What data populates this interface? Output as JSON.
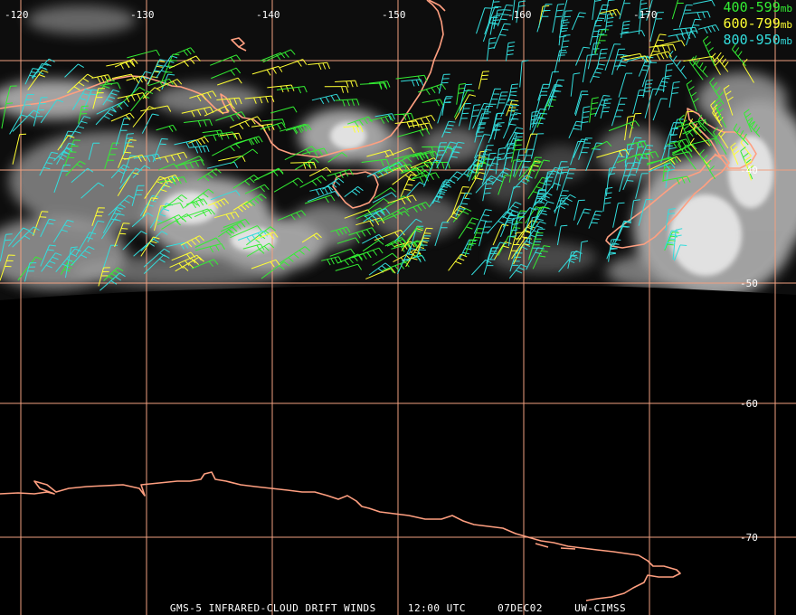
{
  "title": {
    "product": "GMS-5 INFRARED-CLOUD DRIFT WINDS",
    "time": "12:00 UTC",
    "date": "07DEC02",
    "credit": "UW-CIMSS"
  },
  "legend": [
    {
      "range": "400-599",
      "unit": "mb",
      "color": "#33ee33"
    },
    {
      "range": "600-799",
      "unit": "mb",
      "color": "#ffff33"
    },
    {
      "range": "800-950",
      "unit": "mb",
      "color": "#33dddd"
    }
  ],
  "longitude_labels": [
    "-120",
    "-130",
    "-140",
    "-150",
    "-160",
    "-170"
  ],
  "latitude_labels": [
    "-40",
    "-50",
    "-60",
    "-70"
  ],
  "colors": {
    "coastline": "#ff9f80",
    "grid": "#f0a080",
    "background": "#000000",
    "cloud": "#cfcfcf"
  }
}
